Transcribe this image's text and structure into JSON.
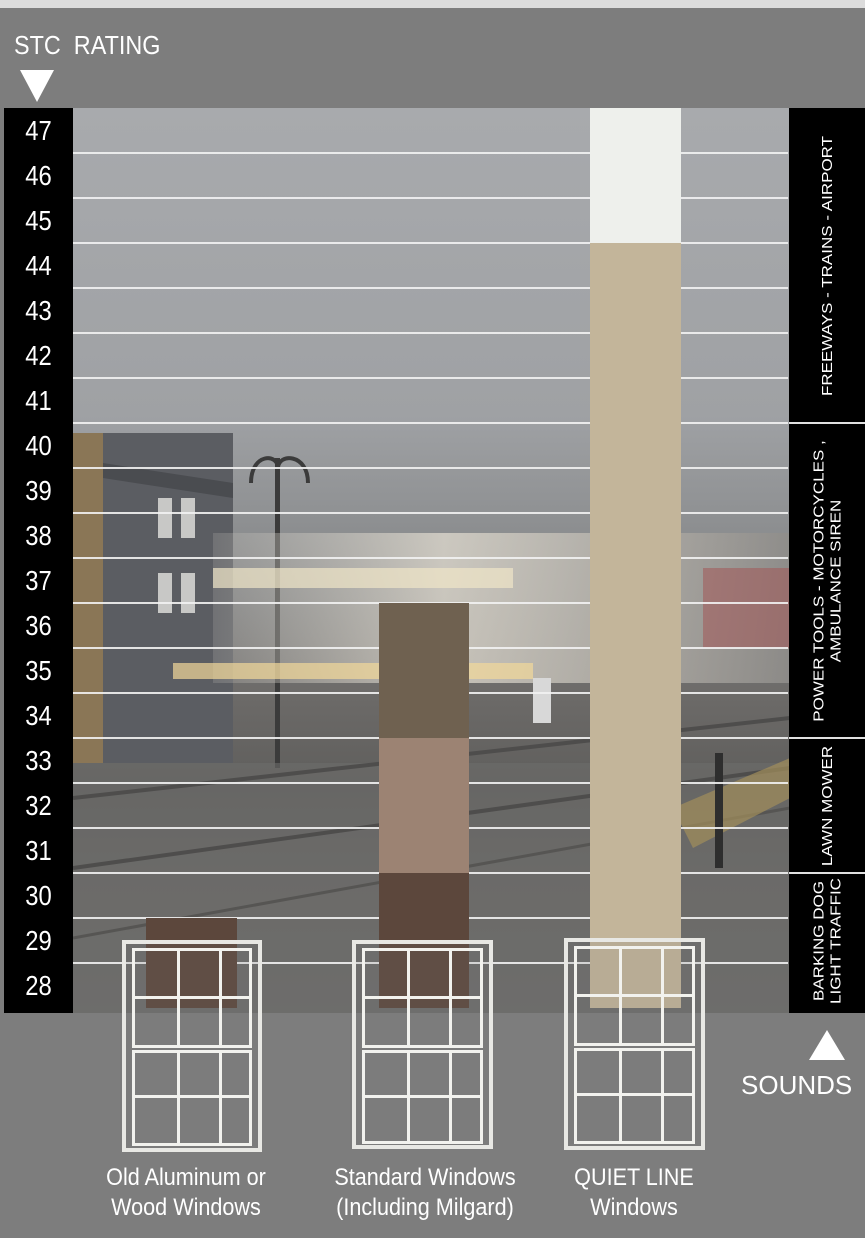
{
  "header": {
    "axis_title": "STC  RATING"
  },
  "footer": {
    "sounds_label": "SOUNDS"
  },
  "colors": {
    "frame": "#7d7d7d",
    "old_windows_bar": "#5c473c",
    "standard_lower": "#5c473c",
    "standard_middle": "#9c8373",
    "standard_upper": "#6f6150",
    "quiet_line_lower": "#c3b59a",
    "quiet_line_top": "#eef0ec"
  },
  "chart_data": {
    "type": "bar",
    "ylabel": "STC  RATING",
    "ylim": [
      28,
      47
    ],
    "y_ticks": [
      "47",
      "46",
      "45",
      "44",
      "43",
      "42",
      "41",
      "40",
      "39",
      "38",
      "37",
      "36",
      "35",
      "34",
      "33",
      "32",
      "31",
      "30",
      "29",
      "28"
    ],
    "categories": [
      "Old Aluminum or Wood Windows",
      "Standard Windows (Including Milgard)",
      "QUIET LINE Windows"
    ],
    "category_lines": [
      [
        "Old Aluminum or",
        "Wood Windows"
      ],
      [
        "Standard Windows",
        "(Including Milgard)"
      ],
      [
        "QUIET LINE",
        "Windows"
      ]
    ],
    "bars": [
      {
        "category": "Old Aluminum or Wood Windows",
        "segments": [
          {
            "from": 27.5,
            "to": 29.5,
            "color": "#5c473c"
          }
        ]
      },
      {
        "category": "Standard Windows (Including Milgard)",
        "segments": [
          {
            "from": 27.5,
            "to": 30.5,
            "color": "#5c473c"
          },
          {
            "from": 30.5,
            "to": 33.5,
            "color": "#9c8373"
          },
          {
            "from": 33.5,
            "to": 36.5,
            "color": "#6f6150"
          }
        ]
      },
      {
        "category": "QUIET LINE Windows",
        "segments": [
          {
            "from": 27.5,
            "to": 44.5,
            "color": "#c3b59a"
          },
          {
            "from": 44.5,
            "to": 47.5,
            "color": "#eef0ec"
          }
        ]
      }
    ],
    "sound_ranges": [
      {
        "lines": [
          "FREEWAYS - TRAINS - AIRPORT"
        ],
        "from": 40.5,
        "to": 47.5
      },
      {
        "lines": [
          "POWER TOOLS - MOTORCYCLES ,",
          "AMBULANCE SIREN"
        ],
        "from": 33.5,
        "to": 40.5
      },
      {
        "lines": [
          "LAWN MOWER"
        ],
        "from": 30.5,
        "to": 33.5
      },
      {
        "lines": [
          "BARKING DOG",
          "LIGHT TRAFFIC"
        ],
        "from": 27.5,
        "to": 30.5
      }
    ],
    "grid": true
  }
}
